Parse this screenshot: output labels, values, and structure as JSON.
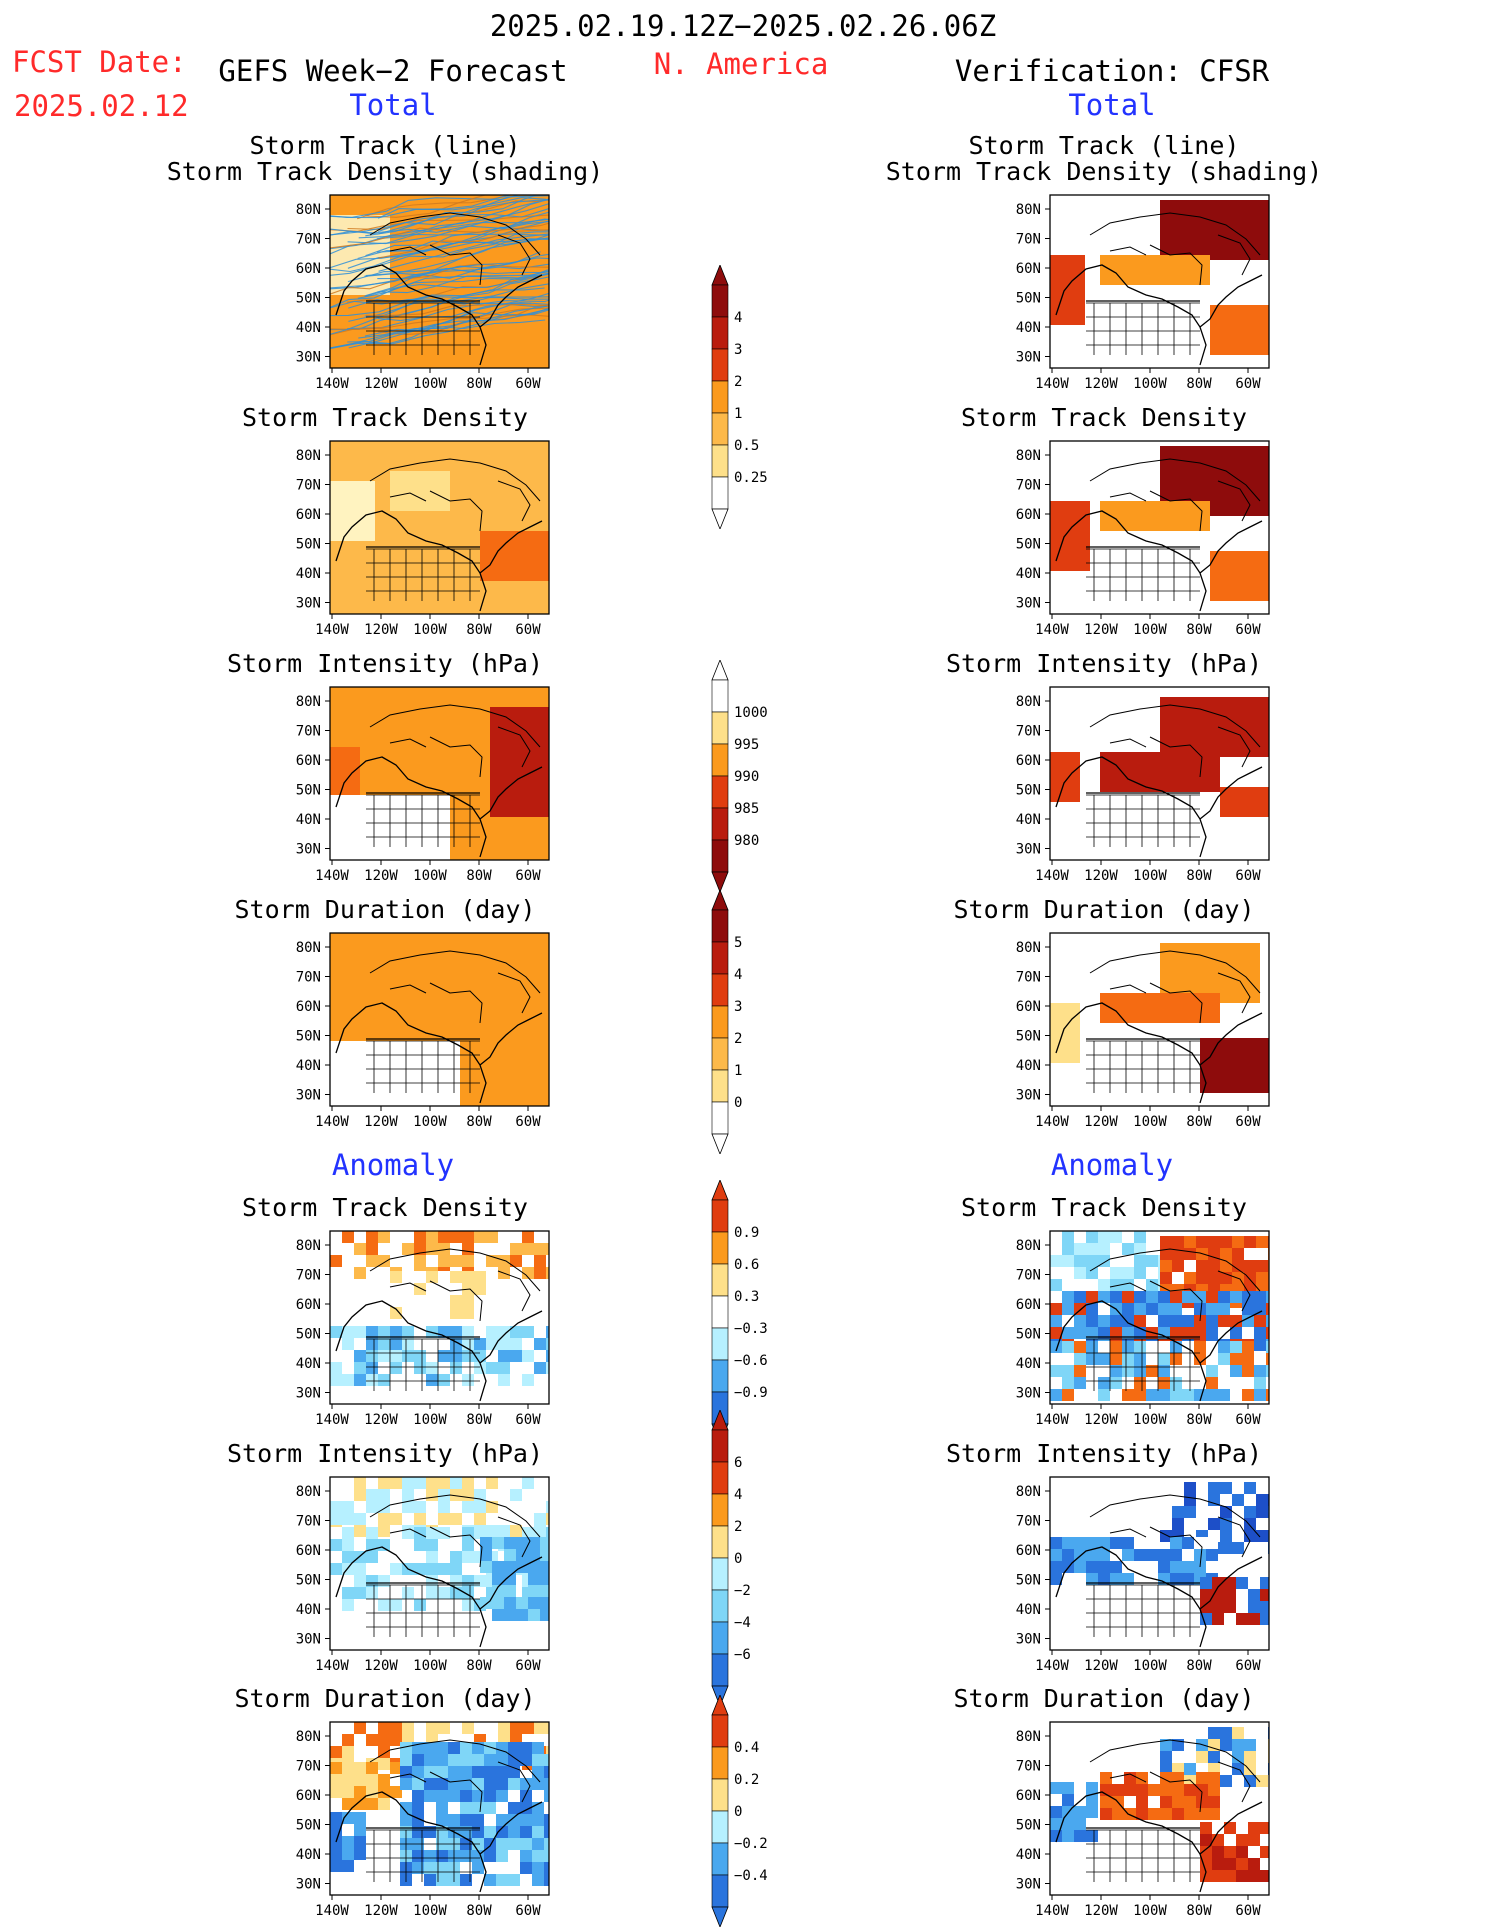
{
  "header": {
    "period": "2025.02.19.12Z−2025.02.26.06Z",
    "fcst_label": "FCST Date:",
    "fcst_date": "2025.02.12",
    "left_title": "GEFS Week−2 Forecast",
    "region": "N. America",
    "right_title": "Verification: CFSR",
    "total_left": "Total",
    "total_right": "Total",
    "anomaly_left": "Anomaly",
    "anomaly_right": "Anomaly"
  },
  "axes": {
    "lat_labels": [
      "80N",
      "70N",
      "60N",
      "50N",
      "40N",
      "30N"
    ],
    "lon_labels": [
      "140W",
      "120W",
      "100W",
      "80W",
      "60W"
    ]
  },
  "panels": {
    "track_line": "Storm Track (line)",
    "track_shading": "Storm Track Density (shading)",
    "density": "Storm Track Density",
    "intensity": "Storm Intensity (hPa)",
    "duration": "Storm Duration (day)"
  },
  "colorbars": {
    "density_total": [
      "4",
      "3",
      "2",
      "1",
      "0.5",
      "0.25"
    ],
    "intensity_total": [
      "1000",
      "995",
      "990",
      "985",
      "980"
    ],
    "duration_total": [
      "5",
      "4",
      "3",
      "2",
      "1",
      "0"
    ],
    "density_anom": [
      "0.9",
      "0.6",
      "0.3",
      "−0.3",
      "−0.6",
      "−0.9"
    ],
    "intensity_anom": [
      "6",
      "4",
      "2",
      "0",
      "−2",
      "−4",
      "−6"
    ],
    "duration_anom": [
      "0.4",
      "0.2",
      "0",
      "−0.2",
      "−0.4"
    ]
  },
  "colors": {
    "warm": [
      "#fff8b0",
      "#fee08a",
      "#fdb94a",
      "#fb9a1e",
      "#f56b12",
      "#e03d10",
      "#b91c0e",
      "#8e0c0c"
    ],
    "cool": [
      "#b6f0ff",
      "#7fd6f7",
      "#4aa8ef",
      "#2a74dd",
      "#1d4fc8"
    ],
    "track_line": "#2f8fd8"
  }
}
